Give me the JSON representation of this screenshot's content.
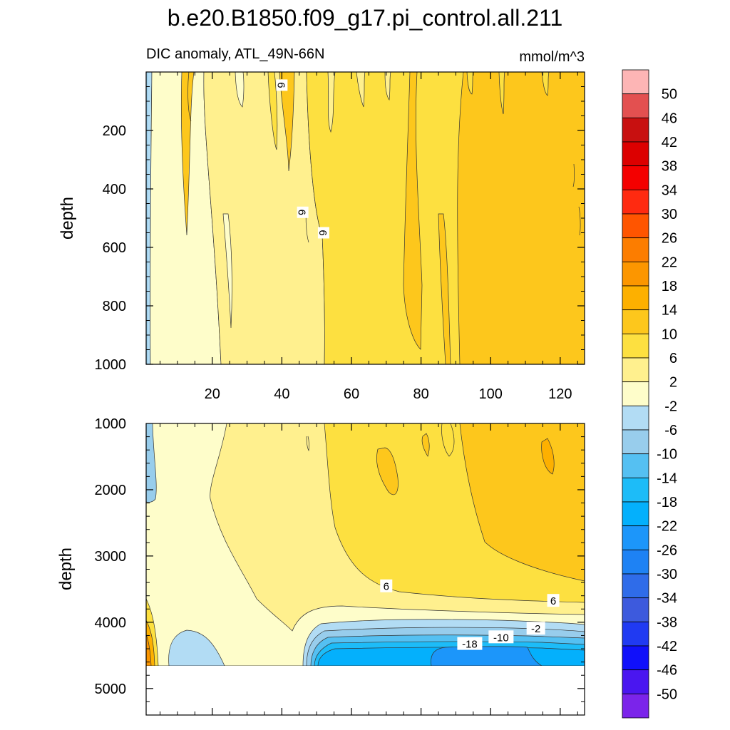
{
  "chart_data": {
    "type": "heatmap",
    "title": "b.e20.B1850.f09_g17.pi_control.all.211",
    "subtitle_left": "DIC anomaly, ATL_49N-66N",
    "subtitle_right": "mmol/m^3",
    "ylabel": "depth",
    "colorbar_levels": [
      "50",
      "46",
      "42",
      "38",
      "34",
      "30",
      "26",
      "22",
      "18",
      "14",
      "10",
      "6",
      "2",
      "-2",
      "-6",
      "-10",
      "-14",
      "-18",
      "-22",
      "-26",
      "-30",
      "-34",
      "-38",
      "-42",
      "-46",
      "-50"
    ],
    "colorbar_colors": [
      "#fdb5b5",
      "#e35050",
      "#c81010",
      "#dc0000",
      "#f40000",
      "#ff2a10",
      "#ff5500",
      "#fc7d00",
      "#fc9600",
      "#fdb000",
      "#fdc71c",
      "#fde040",
      "#fff08e",
      "#fefdca",
      "#b2dcf4",
      "#98cdec",
      "#55c0f2",
      "#1dbcf8",
      "#04b0fc",
      "#1c96fa",
      "#1e82f4",
      "#2f6ce9",
      "#3d5add",
      "#203af2",
      "#1010fa",
      "#4a16f0",
      "#7b24ea"
    ],
    "panels": [
      {
        "name": "upper",
        "x_ticks": [
          20,
          40,
          60,
          80,
          100,
          120
        ],
        "xlim": [
          1,
          127
        ],
        "y_ticks": [
          200,
          400,
          600,
          800,
          1000
        ],
        "ylim": [
          0,
          1000
        ],
        "contour_labels": [
          {
            "text": "6",
            "x": 40,
            "y": 45
          },
          {
            "text": "6",
            "x": 46,
            "y": 480
          },
          {
            "text": "6",
            "x": 52,
            "y": 550
          }
        ]
      },
      {
        "name": "lower",
        "y_ticks": [
          1000,
          2000,
          3000,
          4000,
          5000
        ],
        "ylim": [
          1000,
          5400
        ],
        "data_bottom": 4640,
        "contour_labels": [
          {
            "text": "6",
            "x": 70,
            "y": 3450
          },
          {
            "text": "6",
            "x": 118,
            "y": 3670
          },
          {
            "text": "-2",
            "x": 113,
            "y": 4090
          },
          {
            "text": "-10",
            "x": 103,
            "y": 4220
          },
          {
            "text": "-18",
            "x": 94,
            "y": 4320
          }
        ]
      }
    ]
  }
}
